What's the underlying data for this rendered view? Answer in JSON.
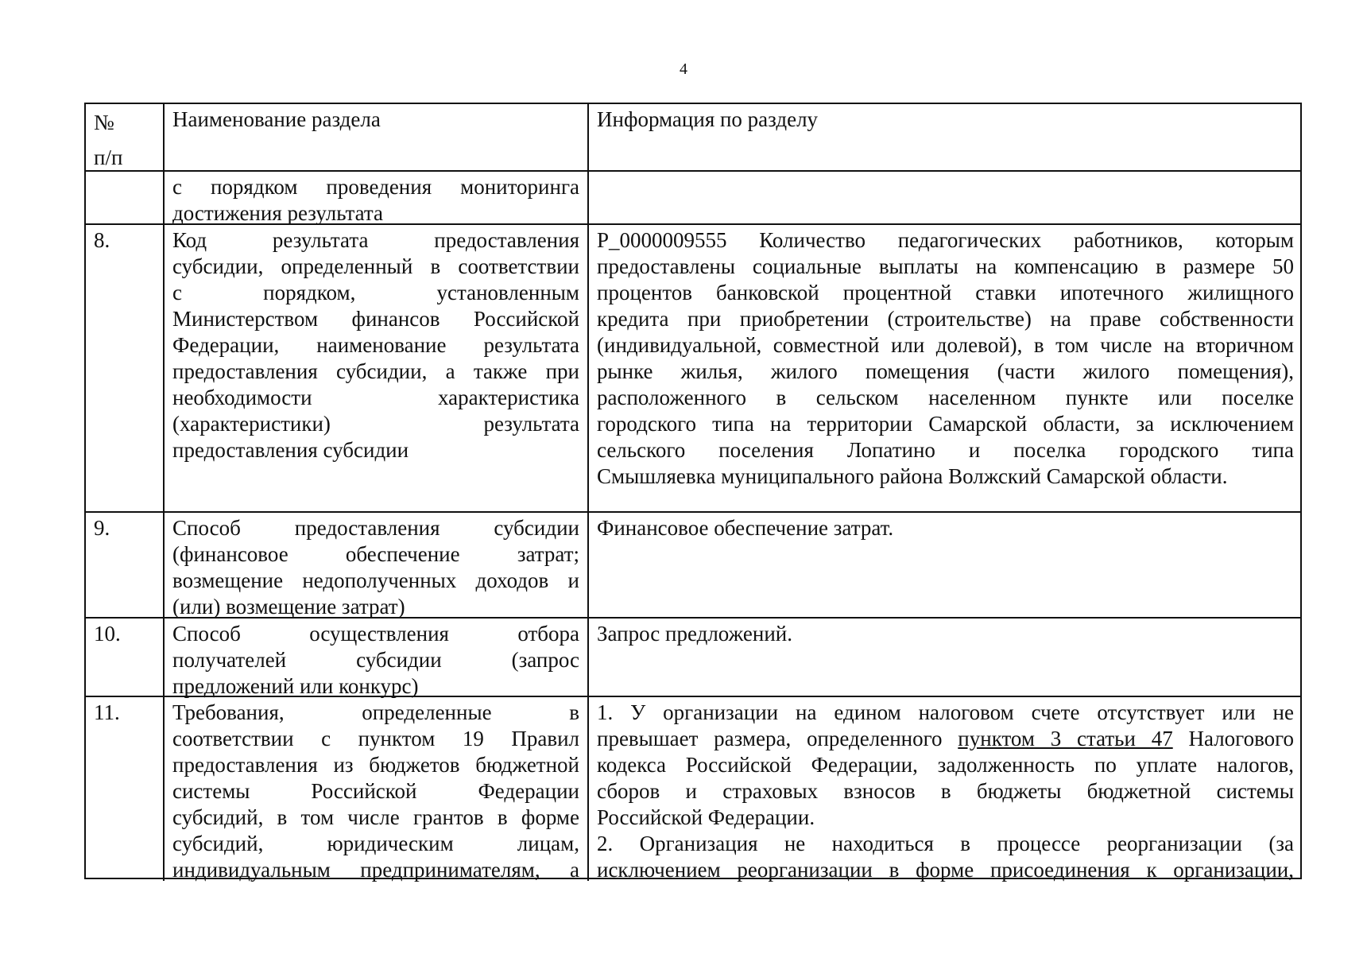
{
  "page_number": "4",
  "header": {
    "num": [
      "№",
      "п/п"
    ],
    "section_name": "Наименование раздела",
    "section_info": "Информация по разделу"
  },
  "rows": [
    {
      "num": "",
      "name": [
        {
          "t": "с порядком проведения мониторинга",
          "j": true
        },
        {
          "t": "достижения результата"
        }
      ],
      "info": []
    },
    {
      "num": "8.",
      "name": [
        {
          "t": "Код результата предоставления",
          "j": true
        },
        {
          "t": "субсидии, определенный в соответствии",
          "j": true
        },
        {
          "t": "с порядком, установленным",
          "j": true
        },
        {
          "t": "Министерством финансов Российской",
          "j": true
        },
        {
          "t": "Федерации, наименование результата",
          "j": true
        },
        {
          "t": "предоставления субсидии, а также при",
          "j": true
        },
        {
          "t": "необходимости характеристика",
          "j": true
        },
        {
          "t": "(характеристики) результата",
          "j": true
        },
        {
          "t": "предоставления субсидии"
        }
      ],
      "info": [
        {
          "t": "P_0000009555 Количество педагогических работников, которым",
          "j": true
        },
        {
          "t": "предоставлены социальные выплаты на компенсацию в размере 50",
          "j": true
        },
        {
          "t": "процентов банковской процентной ставки ипотечного жилищного",
          "j": true
        },
        {
          "t": "кредита при приобретении (строительстве) на праве собственности",
          "j": true
        },
        {
          "t": "(индивидуальной, совместной или долевой), в том числе на вторичном",
          "j": true
        },
        {
          "t": "рынке жилья, жилого помещения (части жилого помещения),",
          "j": true
        },
        {
          "t": "расположенного в сельском населенном пункте или поселке",
          "j": true
        },
        {
          "t": "городского типа на территории Самарской области, за исключением",
          "j": true
        },
        {
          "t": "сельского поселения Лопатино и поселка городского типа",
          "j": true
        },
        {
          "t": "Смышляевка муниципального района Волжский Самарской области."
        }
      ]
    },
    {
      "num": "9.",
      "name": [
        {
          "t": "Способ предоставления субсидии",
          "j": true
        },
        {
          "t": "(финансовое обеспечение затрат;",
          "j": true
        },
        {
          "t": "возмещение недополученных доходов и",
          "j": true
        },
        {
          "t": "(или) возмещение затрат)"
        }
      ],
      "info": [
        {
          "t": "Финансовое обеспечение затрат."
        }
      ]
    },
    {
      "num": "10.",
      "name": [
        {
          "t": "Способ осуществления отбора",
          "j": true
        },
        {
          "t": "получателей субсидии (запрос",
          "j": true
        },
        {
          "t": "предложений или конкурс)"
        }
      ],
      "info": [
        {
          "t": "Запрос предложений."
        }
      ]
    },
    {
      "num": "11.",
      "name": [
        {
          "t": "Требования, определенные в",
          "j": true
        },
        {
          "t": "соответствии с пунктом 19 Правил",
          "j": true
        },
        {
          "t": "предоставления из бюджетов бюджетной",
          "j": true
        },
        {
          "t": "системы Российской Федерации",
          "j": true
        },
        {
          "t": "субсидий, в том числе грантов в форме",
          "j": true
        },
        {
          "t": "субсидий, юридическим лицам,",
          "j": true
        },
        {
          "t": "индивидуальным предпринимателям, а",
          "j": true
        }
      ],
      "info": [
        {
          "t": "1. У организации на едином налоговом счете отсутствует или не",
          "j": true
        },
        {
          "t": "превышает размера, определенного",
          "link": "пунктом 3 статьи 47",
          "post": "Налогового",
          "j": true
        },
        {
          "t": "кодекса Российской Федерации, задолженность по уплате налогов,",
          "j": true
        },
        {
          "t": "сборов и страховых взносов в бюджеты бюджетной системы",
          "j": true
        },
        {
          "t": "Российской Федерации."
        },
        {
          "t": "2. Организация не находиться в процессе реорганизации (за",
          "j": true
        },
        {
          "t": "исключением реорганизации в форме присоединения к организации,",
          "j": true
        }
      ]
    }
  ]
}
